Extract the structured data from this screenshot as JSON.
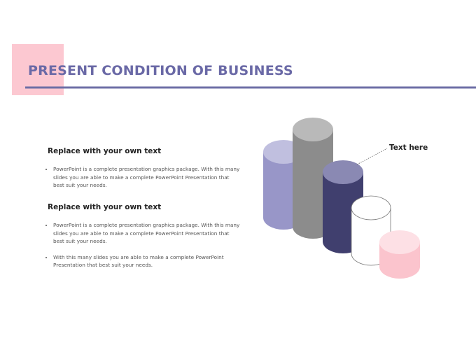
{
  "header": {
    "title": "PRESENT CONDITION OF BUSINESS"
  },
  "sections": [
    {
      "heading": "Replace with your own text",
      "bullets": [
        "PowerPoint is a complete presentation graphics package. With this many slides you are able to make a complete PowerPoint Presentation that best suit your needs."
      ]
    },
    {
      "heading": "Replace with your own text",
      "bullets": [
        "PowerPoint is a complete presentation graphics package. With this many slides you are able to make a complete PowerPoint Presentation that best suit your needs.",
        "With this many slides you are able to make a complete PowerPoint Presentation that best suit your needs."
      ]
    }
  ],
  "callout": "Text here"
}
